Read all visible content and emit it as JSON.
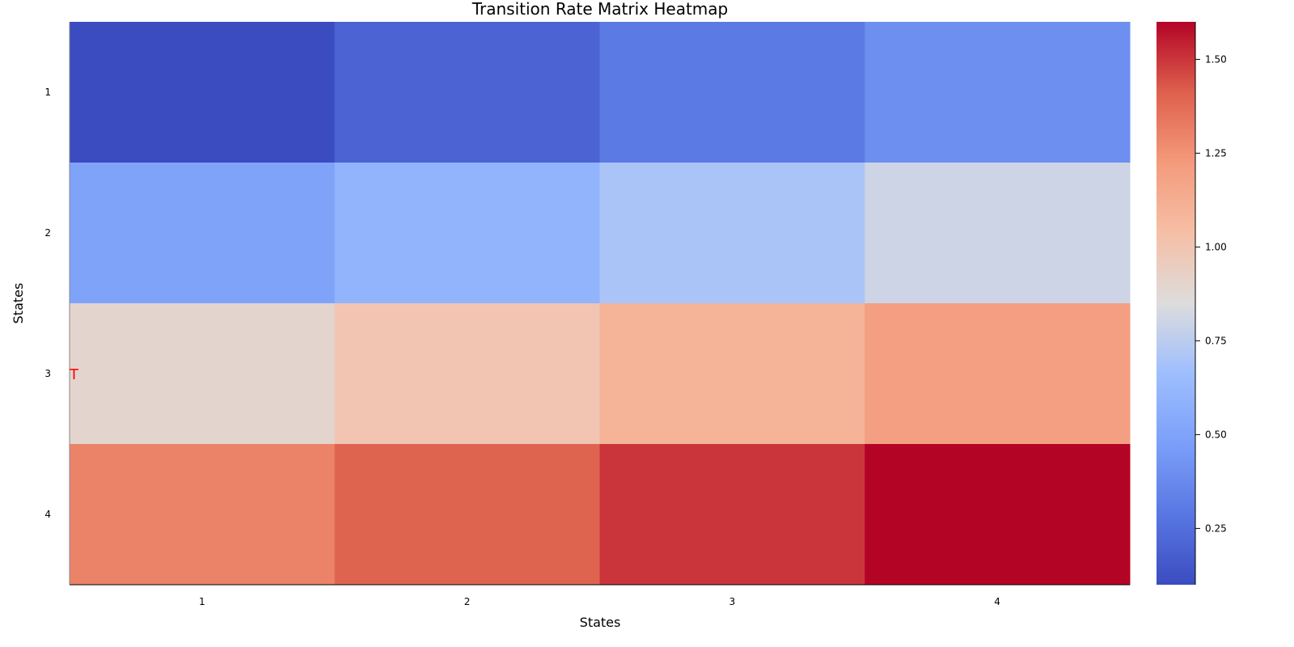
{
  "chart_data": {
    "type": "heatmap",
    "title": "Transition Rate Matrix Heatmap",
    "xlabel": "States",
    "ylabel": "States",
    "x_categories": [
      "1",
      "2",
      "3",
      "4"
    ],
    "y_categories": [
      "1",
      "2",
      "3",
      "4"
    ],
    "values": [
      [
        0.1,
        0.2,
        0.3,
        0.4
      ],
      [
        0.5,
        0.6,
        0.7,
        0.8
      ],
      [
        0.9,
        1.0,
        1.1,
        1.2
      ],
      [
        1.3,
        1.4,
        1.5,
        1.6
      ]
    ],
    "colormap": "coolwarm",
    "colorbar": {
      "range": [
        0.1,
        1.6
      ],
      "ticks": [
        0.25,
        0.5,
        0.75,
        1.0,
        1.25,
        1.5
      ],
      "tick_labels": [
        "0.25",
        "0.50",
        "0.75",
        "1.00",
        "1.25",
        "1.50"
      ]
    },
    "annotation": {
      "text": "T",
      "color": "#ff0000",
      "row": 3,
      "col": 1
    },
    "grid": false
  }
}
